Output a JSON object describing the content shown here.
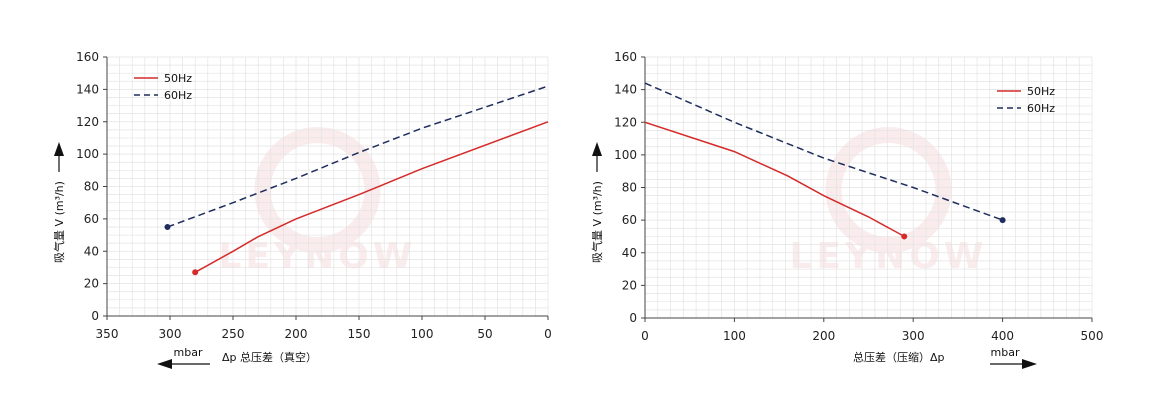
{
  "colors": {
    "c50": "#d42a2a",
    "c60": "#1f2d5c",
    "grid": "#e3e3e3",
    "axis": "#444444",
    "watermark": "#f6dede"
  },
  "watermark_text": "LEYNOW",
  "chart_data": [
    {
      "type": "line",
      "title": "",
      "xlabel": "Δp 总压差（真空）",
      "x_unit": "mbar",
      "ylabel": "吸气量 V (m³/h)",
      "xlim": [
        350,
        0
      ],
      "x_reversed": true,
      "ylim": [
        0,
        160
      ],
      "xticks": [
        350,
        300,
        250,
        200,
        150,
        100,
        50,
        0
      ],
      "yticks": [
        0,
        20,
        40,
        60,
        80,
        100,
        120,
        140,
        160
      ],
      "grid": true,
      "legend_position": "top-left",
      "series": [
        {
          "name": "50Hz",
          "style": "solid",
          "x": [
            280,
            250,
            230,
            200,
            150,
            100,
            0
          ],
          "y": [
            27,
            40,
            49,
            60,
            75,
            91,
            120
          ]
        },
        {
          "name": "60Hz",
          "style": "dashed",
          "x": [
            302,
            250,
            200,
            150,
            100,
            50,
            0
          ],
          "y": [
            55,
            70,
            85,
            101,
            116,
            129,
            142
          ]
        }
      ]
    },
    {
      "type": "line",
      "title": "",
      "xlabel": "总压差（压缩）Δp",
      "x_unit": "mbar",
      "ylabel": "吸气量 V (m³/h)",
      "xlim": [
        0,
        500
      ],
      "x_reversed": false,
      "ylim": [
        0,
        160
      ],
      "xticks": [
        0,
        100,
        200,
        300,
        400,
        500
      ],
      "yticks": [
        0,
        20,
        40,
        60,
        80,
        100,
        120,
        140,
        160
      ],
      "grid": true,
      "legend_position": "top-right",
      "series": [
        {
          "name": "50Hz",
          "style": "solid",
          "x": [
            0,
            100,
            160,
            200,
            250,
            290
          ],
          "y": [
            120,
            102,
            87,
            75,
            62,
            50
          ]
        },
        {
          "name": "60Hz",
          "style": "dashed",
          "x": [
            0,
            100,
            200,
            300,
            400
          ],
          "y": [
            144,
            120,
            98,
            80,
            60
          ]
        }
      ]
    }
  ]
}
